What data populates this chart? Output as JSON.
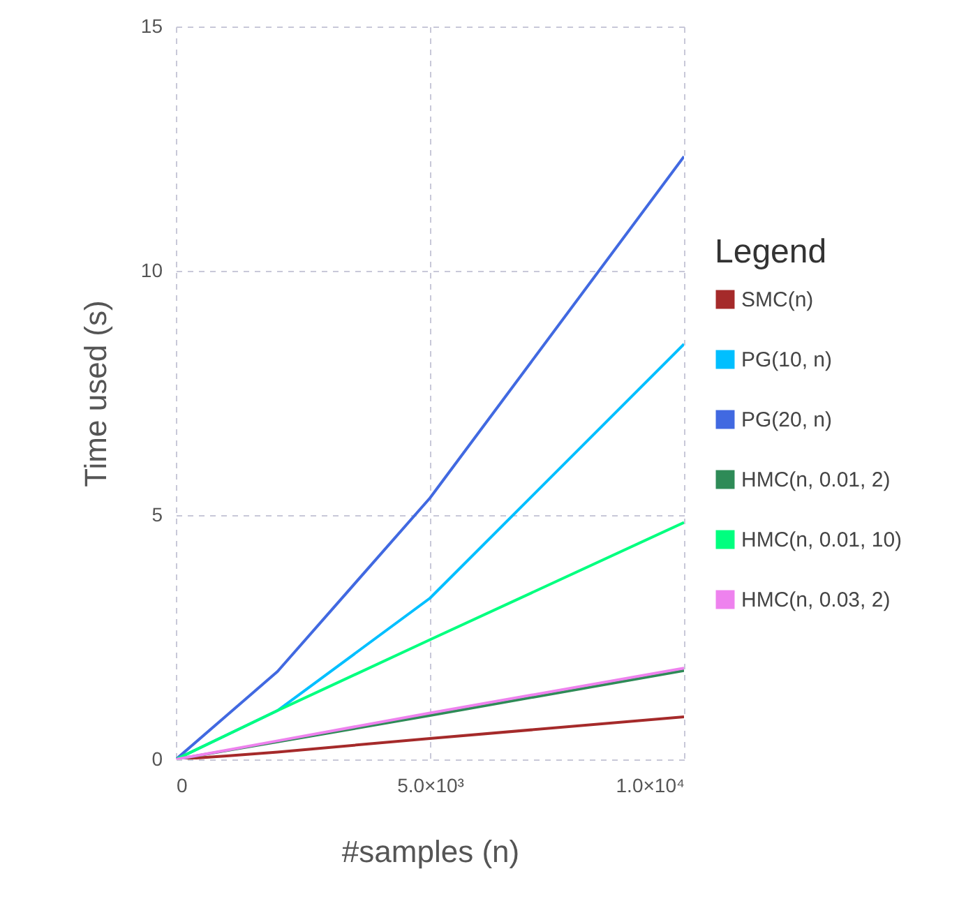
{
  "chart_data": {
    "type": "line",
    "xlabel": "#samples (n)",
    "ylabel": "Time used (s)",
    "legend_title": "Legend",
    "legend": "right",
    "grid": true,
    "x": [
      0,
      1000,
      2000,
      5000,
      10000
    ],
    "xlim": [
      0,
      10000
    ],
    "xticks": [
      0,
      {
        "value": 5000,
        "label": "5.0×10³"
      },
      {
        "value": 10000,
        "label": "1.0×10⁴"
      }
    ],
    "ylim": [
      0,
      15
    ],
    "yticks": [
      0,
      5,
      10,
      15
    ],
    "series": [
      {
        "name": "SMC(n)",
        "color": "#a52a2a",
        "values": [
          0,
          0.07,
          0.15,
          0.43,
          0.87
        ]
      },
      {
        "name": "PG(10, n)",
        "color": "#00bfff",
        "values": [
          0,
          0.5,
          1.0,
          3.3,
          8.5
        ]
      },
      {
        "name": "PG(20, n)",
        "color": "#4169e1",
        "values": [
          0,
          0.9,
          1.8,
          5.35,
          12.34
        ]
      },
      {
        "name": "HMC(n, 0.01, 2)",
        "color": "#2e8b57",
        "values": [
          0,
          0.18,
          0.36,
          0.9,
          1.82
        ]
      },
      {
        "name": "HMC(n, 0.01, 10)",
        "color": "#00ff7f",
        "values": [
          0,
          0.5,
          1.0,
          2.45,
          4.85
        ]
      },
      {
        "name": "HMC(n, 0.03, 2)",
        "color": "#ee82ee",
        "values": [
          0,
          0.19,
          0.38,
          0.95,
          1.87
        ]
      }
    ]
  }
}
